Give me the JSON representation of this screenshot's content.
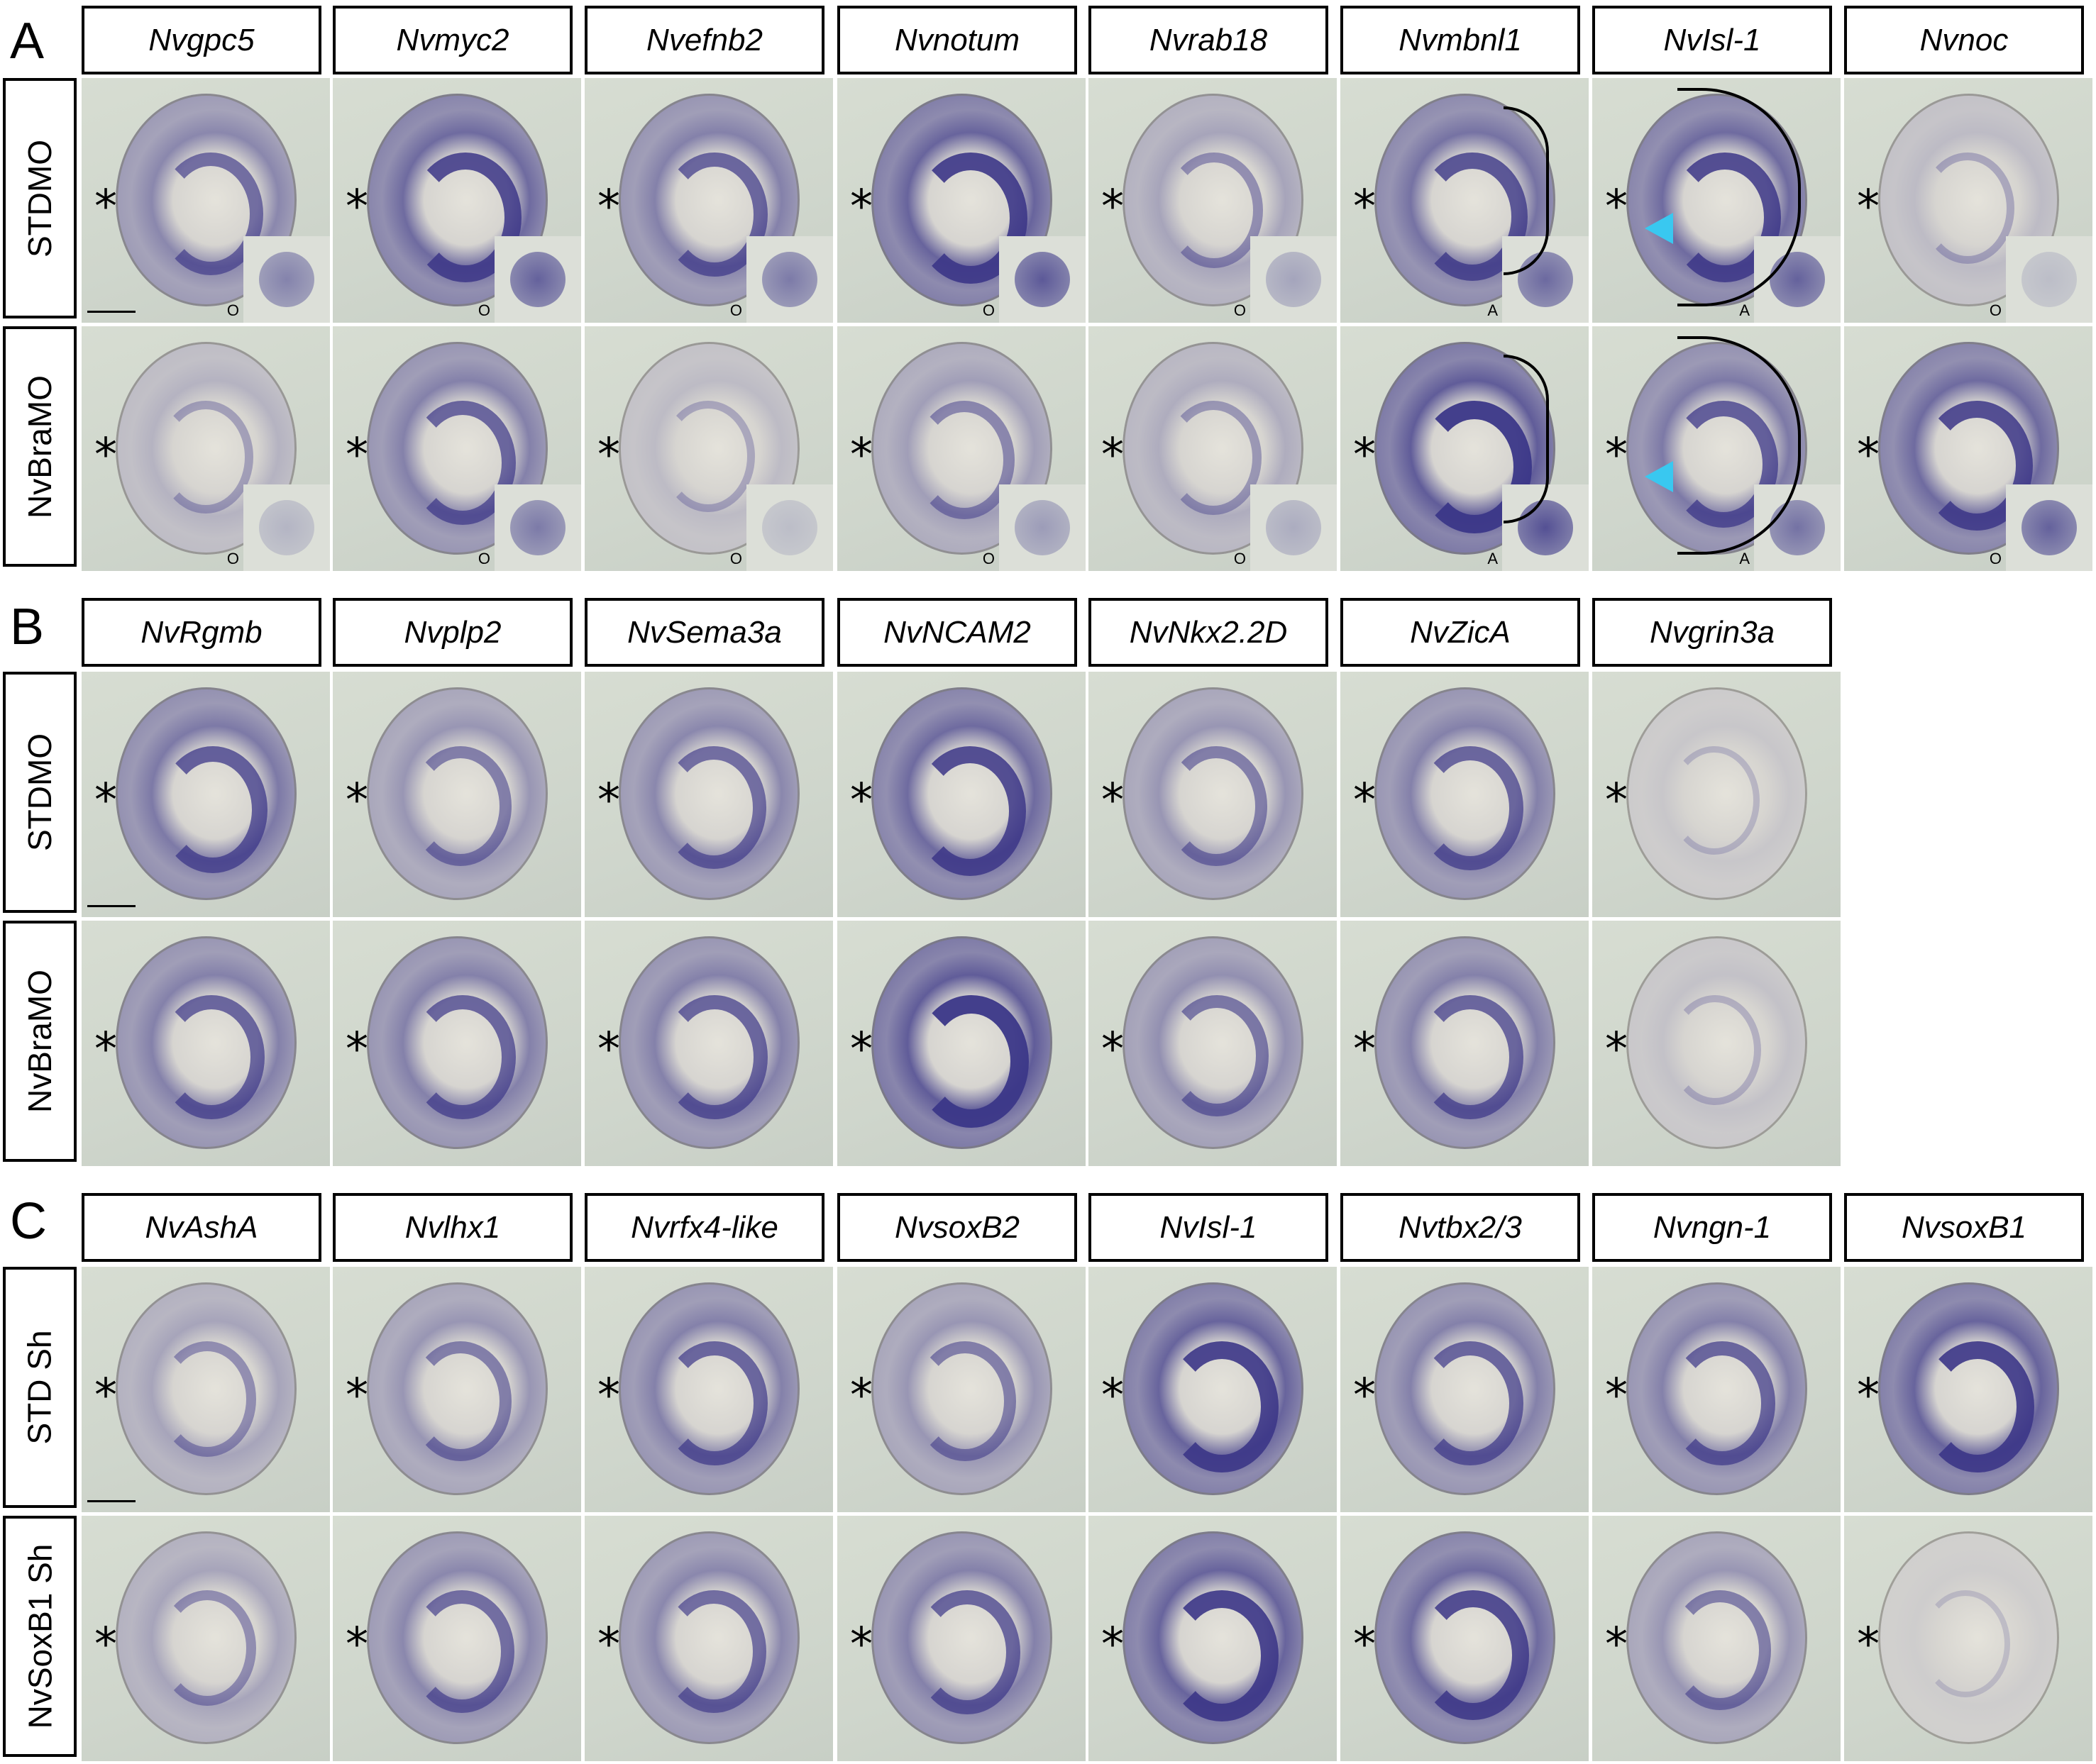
{
  "panels": [
    {
      "letter": "A",
      "genes": [
        "Nvgpc5",
        "Nvmyc2",
        "Nvefnb2",
        "Nvnotum",
        "Nvrab18",
        "Nvmbnl1",
        "NvIsl-1",
        "Nvnoc"
      ],
      "rows": [
        "STDMO",
        "NvBraMO"
      ],
      "inset_labels": [
        [
          "O",
          "O",
          "O",
          "O",
          "O",
          "A",
          "A",
          "O"
        ],
        [
          "O",
          "O",
          "O",
          "O",
          "O",
          "A",
          "A",
          "O"
        ]
      ],
      "stain": [
        [
          0.55,
          0.75,
          0.6,
          0.8,
          0.35,
          0.7,
          0.75,
          0.2
        ],
        [
          0.25,
          0.6,
          0.2,
          0.4,
          0.3,
          0.85,
          0.65,
          0.75
        ]
      ]
    },
    {
      "letter": "B",
      "genes": [
        "NvRgmb",
        "Nvplp2",
        "NvSema3a",
        "NvNCAM2",
        "NvNkx2.2D",
        "NvZicA",
        "Nvgrin3a"
      ],
      "rows": [
        "STDMO",
        "NvBraMO"
      ],
      "stain": [
        [
          0.65,
          0.45,
          0.55,
          0.75,
          0.45,
          0.6,
          0.12
        ],
        [
          0.6,
          0.6,
          0.6,
          0.85,
          0.5,
          0.6,
          0.15
        ]
      ]
    },
    {
      "letter": "C",
      "genes": [
        "NvAshA",
        "Nvlhx1",
        "Nvrfx4-like",
        "NvsoxB2",
        "NvIsl-1",
        "Nvtbx2/3",
        "Nvngn-1",
        "NvsoxB1"
      ],
      "rows": [
        "STD Sh",
        "NvSoxB1 Sh"
      ],
      "stain": [
        [
          0.35,
          0.45,
          0.6,
          0.45,
          0.8,
          0.6,
          0.6,
          0.8
        ],
        [
          0.35,
          0.55,
          0.55,
          0.6,
          0.8,
          0.75,
          0.45,
          0.08
        ]
      ]
    }
  ],
  "asterisk": "*",
  "colors": {
    "stain": "#3c3788",
    "background": "#cfd6cc",
    "arrowhead": "#39c8f0"
  }
}
